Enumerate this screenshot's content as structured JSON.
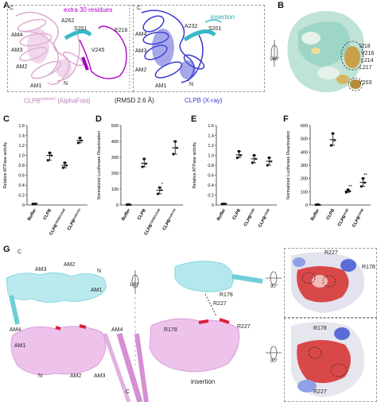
{
  "panels": {
    "A": {
      "letter": "A",
      "left_labels": {
        "extra": "extra 30 residues",
        "a262": "A262",
        "s201": "S201",
        "e216": "E216",
        "v245": "V245",
        "am4": "AM4",
        "am3": "AM3",
        "am2": "AM2",
        "am1": "AM1",
        "n": "N",
        "c": "C",
        "caption": "CLPB",
        "caption_sup": "isoform1",
        "caption_suffix": "(AlphaFold)"
      },
      "right_labels": {
        "insertion": "insertion",
        "a232": "A232",
        "s201": "S201",
        "am4": "AM4",
        "am3": "AM3",
        "am2": "AM2",
        "am1": "AM1",
        "n": "N",
        "c": "C",
        "caption": "CLPB (X-ray)"
      },
      "rmsd": "(RMSD 2.6 Å)"
    },
    "B": {
      "letter": "B",
      "labels": [
        "I218",
        "V216",
        "L214",
        "L217",
        "Y203"
      ],
      "rotation": "180°"
    },
    "C": {
      "letter": "C"
    },
    "D": {
      "letter": "D"
    },
    "E": {
      "letter": "E"
    },
    "F": {
      "letter": "F"
    },
    "G": {
      "letter": "G",
      "left": {
        "c_top": "C",
        "am3": "AM3",
        "am2": "AM2",
        "n_top": "N",
        "am1_top": "AM1",
        "am4_top": "AM4",
        "am4_bottom": "AM4",
        "am1_bottom": "AM1",
        "n_bottom": "N",
        "am2_bottom": "AM2",
        "am3_bottom": "AM3",
        "c_bottom": "C"
      },
      "right": {
        "r178_a": "R178",
        "r227_a": "R227",
        "r227_b": "R227",
        "r178_b": "R178",
        "insertion": "insertion"
      },
      "rot_center": "180°",
      "rot_top": "90°",
      "rot_bottom": "90°",
      "surf_top": {
        "r227": "R227",
        "r178": "R178"
      },
      "surf_bottom": {
        "r178": "R178",
        "r227": "R227"
      }
    }
  },
  "chart_data": [
    {
      "type": "scatter",
      "panel": "C",
      "ylabel": "Relative ATPase activity",
      "ylim": [
        0,
        1.6
      ],
      "yticks": [
        "0",
        "0.2",
        "0.4",
        "0.6",
        "0.8",
        "1.0",
        "1.2",
        "1.4",
        "1.6"
      ],
      "categories": [
        "Buffer",
        "CLPB",
        "CLPBY203E/L214E",
        "CLPBisoform1"
      ],
      "category_base": [
        "Buffer",
        "CLPB",
        "CLPB",
        "CLPB"
      ],
      "category_sup": [
        "",
        "",
        "Y203E/L214E",
        "isoform1"
      ],
      "values": [
        [
          0.02,
          0.02,
          0.03
        ],
        [
          0.9,
          1.05,
          1.0
        ],
        [
          0.75,
          0.85,
          0.8
        ],
        [
          1.25,
          1.35,
          1.3
        ]
      ],
      "means": [
        0.02,
        1.0,
        0.8,
        1.3
      ],
      "significance": [
        "",
        "",
        "",
        ""
      ]
    },
    {
      "type": "scatter",
      "panel": "D",
      "ylabel": "Normalized Luciferase Reactivation",
      "ylim": [
        0,
        500
      ],
      "yticks": [
        "0",
        "100",
        "200",
        "300",
        "400",
        "500"
      ],
      "categories": [
        "Buffer",
        "CLPB",
        "CLPBY203E/L214E",
        "CLPBisoform1"
      ],
      "category_base": [
        "Buffer",
        "CLPB",
        "CLPB",
        "CLPB"
      ],
      "category_sup": [
        "",
        "",
        "Y203E/L214E",
        "isoform1"
      ],
      "values": [
        [
          2,
          3,
          2
        ],
        [
          240,
          290,
          260
        ],
        [
          70,
          110,
          95
        ],
        [
          320,
          400,
          360
        ]
      ],
      "means": [
        2,
        263,
        92,
        360
      ],
      "significance": [
        "",
        "",
        "*",
        ""
      ]
    },
    {
      "type": "scatter",
      "panel": "E",
      "ylabel": "Relative ATPase activity",
      "ylim": [
        0,
        1.6
      ],
      "yticks": [
        "0",
        "0.2",
        "0.4",
        "0.6",
        "0.8",
        "1.0",
        "1.2",
        "1.4",
        "1.6"
      ],
      "categories": [
        "Buffer",
        "CLPB",
        "CLPBI218E",
        "CLPBY203E"
      ],
      "category_base": [
        "Buffer",
        "CLPB",
        "CLPB",
        "CLPB"
      ],
      "category_sup": [
        "",
        "",
        "I218E",
        "Y203E"
      ],
      "values": [
        [
          0.02,
          0.02,
          0.03
        ],
        [
          0.95,
          1.08,
          1.0
        ],
        [
          0.85,
          1.0,
          0.93
        ],
        [
          0.8,
          0.95,
          0.88
        ]
      ],
      "means": [
        0.02,
        1.01,
        0.93,
        0.88
      ],
      "significance": [
        "",
        "",
        "",
        ""
      ]
    },
    {
      "type": "scatter",
      "panel": "F",
      "ylabel": "Normalized Luciferase Reactivation",
      "ylim": [
        0,
        600
      ],
      "yticks": [
        "0",
        "100",
        "200",
        "300",
        "400",
        "500",
        "600"
      ],
      "categories": [
        "Buffer",
        "CLPB",
        "CLPBI218E",
        "CLPBY203E"
      ],
      "category_base": [
        "Buffer",
        "CLPB",
        "CLPB",
        "CLPB"
      ],
      "category_sup": [
        "",
        "",
        "I218E",
        "Y203E"
      ],
      "values": [
        [
          2,
          3,
          2
        ],
        [
          450,
          540,
          490
        ],
        [
          95,
          115,
          105
        ],
        [
          140,
          200,
          170
        ]
      ],
      "means": [
        2,
        493,
        105,
        170
      ],
      "significance": [
        "",
        "",
        "**",
        "**"
      ]
    }
  ]
}
